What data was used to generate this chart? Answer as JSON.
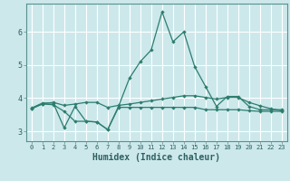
{
  "title": "",
  "xlabel": "Humidex (Indice chaleur)",
  "ylabel": "",
  "bg_color": "#cce8eb",
  "grid_color": "#ffffff",
  "line_color": "#2d7d6e",
  "x": [
    0,
    1,
    2,
    3,
    4,
    5,
    6,
    7,
    8,
    9,
    10,
    11,
    12,
    13,
    14,
    15,
    16,
    17,
    18,
    19,
    20,
    21,
    22,
    23
  ],
  "line_main_y": [
    3.7,
    3.85,
    3.85,
    3.1,
    3.75,
    3.3,
    3.28,
    3.05,
    3.75,
    4.6,
    5.1,
    5.45,
    6.6,
    5.7,
    6.0,
    4.95,
    4.35,
    3.75,
    4.05,
    4.05,
    3.75,
    3.65,
    3.65,
    3.65
  ],
  "line_low_y": [
    3.68,
    3.82,
    3.8,
    3.6,
    3.3,
    3.3,
    3.28,
    3.05,
    3.72,
    3.72,
    3.72,
    3.72,
    3.72,
    3.72,
    3.72,
    3.72,
    3.65,
    3.65,
    3.65,
    3.65,
    3.62,
    3.6,
    3.6,
    3.6
  ],
  "line_avg_y": [
    3.68,
    3.83,
    3.87,
    3.78,
    3.82,
    3.87,
    3.87,
    3.72,
    3.78,
    3.82,
    3.87,
    3.92,
    3.97,
    4.02,
    4.07,
    4.07,
    4.02,
    3.97,
    4.02,
    4.02,
    3.87,
    3.77,
    3.68,
    3.62
  ],
  "ylim": [
    2.7,
    6.85
  ],
  "yticks": [
    3,
    4,
    5,
    6
  ],
  "xlim": [
    -0.5,
    23.5
  ],
  "xtick_labels": [
    "0",
    "1",
    "2",
    "3",
    "4",
    "5",
    "6",
    "7",
    "8",
    "9",
    "10",
    "11",
    "12",
    "13",
    "14",
    "15",
    "16",
    "17",
    "18",
    "19",
    "20",
    "21",
    "22",
    "23"
  ]
}
